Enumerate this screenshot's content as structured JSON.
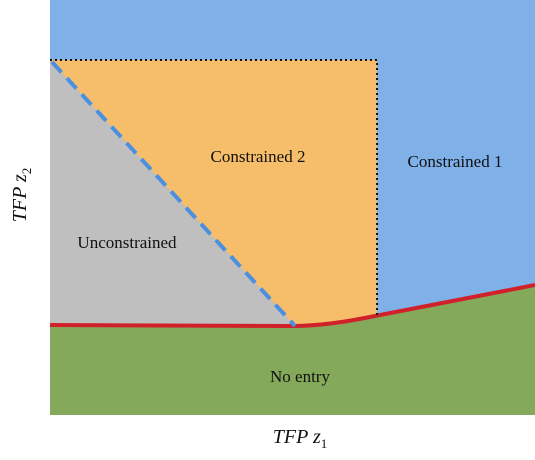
{
  "regions": {
    "constrained_2": "Constrained 2",
    "constrained_1": "Constrained 1",
    "unconstrained": "Unconstrained",
    "no_entry": "No entry"
  },
  "x_axis_label": {
    "text": "TFP z",
    "subscript": "1"
  },
  "y_axis_label": {
    "text": "TFP z",
    "subscript": "2"
  }
}
